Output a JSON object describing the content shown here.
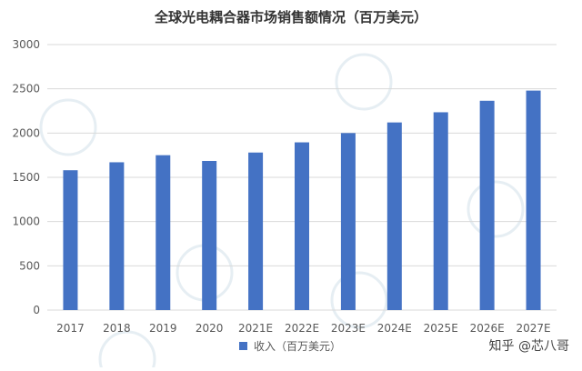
{
  "chart_data": {
    "type": "bar",
    "title": "全球光电耦合器市场销售额情况（百万美元）",
    "categories": [
      "2017",
      "2018",
      "2019",
      "2020",
      "2021E",
      "2022E",
      "2023E",
      "2024E",
      "2025E",
      "2026E",
      "2027E"
    ],
    "series": [
      {
        "name": "收入（百万美元）",
        "values": [
          1580,
          1670,
          1750,
          1685,
          1780,
          1895,
          2000,
          2120,
          2235,
          2365,
          2480
        ]
      }
    ],
    "ylim": [
      0,
      3000
    ],
    "yticks": [
      "0",
      "500",
      "1000",
      "1500",
      "2000",
      "2500",
      "3000"
    ],
    "grid": true,
    "legend_position": "bottom-center",
    "xlabel": "",
    "ylabel": ""
  },
  "colors": {
    "bar": "#4472C4",
    "grid": "#D9D9D9",
    "text": "#595959",
    "watermark": "#E6EEF3"
  },
  "watermark": {
    "source": "知乎 @芯八哥",
    "logo_text": "芯八哥"
  }
}
